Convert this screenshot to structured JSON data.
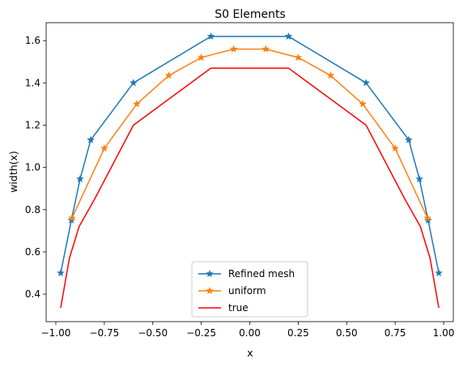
{
  "chart_data": {
    "type": "line",
    "title": "S0 Elements",
    "xlabel": "x",
    "ylabel": "width(x)",
    "xlim": [
      -1.05,
      1.05
    ],
    "ylim": [
      0.27,
      1.685
    ],
    "xticks": [
      -1.0,
      -0.75,
      -0.5,
      -0.25,
      0.0,
      0.25,
      0.5,
      0.75,
      1.0
    ],
    "xtick_labels": [
      "−1.00",
      "−0.75",
      "−0.50",
      "−0.25",
      "0.00",
      "0.25",
      "0.50",
      "0.75",
      "1.00"
    ],
    "yticks": [
      0.4,
      0.6,
      0.8,
      1.0,
      1.2,
      1.4,
      1.6
    ],
    "ytick_labels": [
      "0.4",
      "0.6",
      "0.8",
      "1.0",
      "1.2",
      "1.4",
      "1.6"
    ],
    "grid": false,
    "legend_position": "lower-center",
    "series": [
      {
        "name": "Refined mesh",
        "color": "#1f77b4",
        "marker": "star",
        "x": [
          -0.975,
          -0.92,
          -0.875,
          -0.82,
          -0.6,
          -0.2,
          0.2,
          0.6,
          0.82,
          0.875,
          0.92,
          0.975
        ],
        "y": [
          0.5,
          0.75,
          0.945,
          1.13,
          1.4,
          1.62,
          1.62,
          1.4,
          1.13,
          0.945,
          0.75,
          0.5
        ]
      },
      {
        "name": "uniform",
        "color": "#ff7f0e",
        "marker": "star",
        "x": [
          -0.917,
          -0.75,
          -0.583,
          -0.417,
          -0.25,
          -0.083,
          0.083,
          0.25,
          0.417,
          0.583,
          0.75,
          0.917
        ],
        "y": [
          0.76,
          1.09,
          1.3,
          1.435,
          1.52,
          1.56,
          1.56,
          1.52,
          1.435,
          1.3,
          1.09,
          0.76
        ]
      },
      {
        "name": "true",
        "color": "#ff0000",
        "marker": "none",
        "x": [
          -0.975,
          -0.93,
          -0.88,
          -0.8,
          -0.6,
          -0.2,
          0.2,
          0.6,
          0.8,
          0.88,
          0.93,
          0.975
        ],
        "y": [
          0.335,
          0.57,
          0.72,
          0.85,
          1.2,
          1.47,
          1.47,
          1.2,
          0.85,
          0.72,
          0.57,
          0.335
        ]
      }
    ]
  }
}
